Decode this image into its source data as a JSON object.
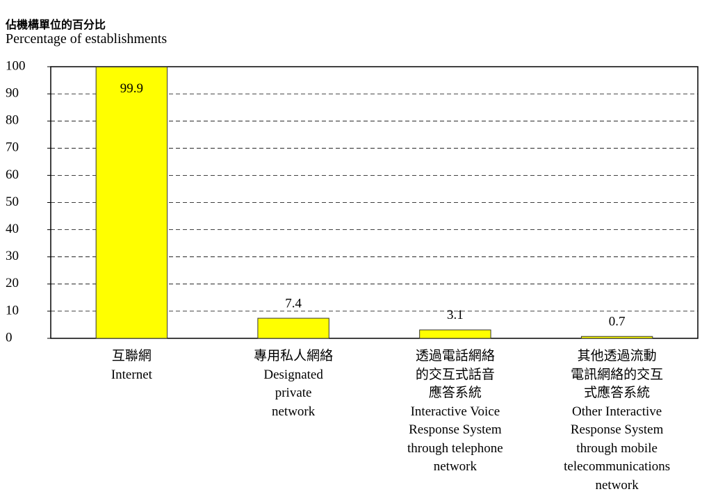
{
  "chart_data": {
    "type": "bar",
    "title": "佔機構單位的百分比",
    "subtitle": "Percentage of establishments",
    "categories": [
      "互聯網\nInternet",
      "專用私人網絡\nDesignated\nprivate\nnetwork",
      "透過電話網絡\n的交互式話音\n應答系統\nInteractive Voice\nResponse System\nthrough telephone\nnetwork",
      "其他透過流動\n電訊網絡的交互\n式應答系統\nOther Interactive\nResponse System\nthrough mobile\ntelecommunications\nnetwork"
    ],
    "values": [
      99.9,
      7.4,
      3.1,
      0.7
    ],
    "color": "#ffff00",
    "ylim": [
      0,
      100
    ],
    "yticks": [
      0,
      10,
      20,
      30,
      40,
      50,
      60,
      70,
      80,
      90,
      100
    ],
    "grid": true
  }
}
